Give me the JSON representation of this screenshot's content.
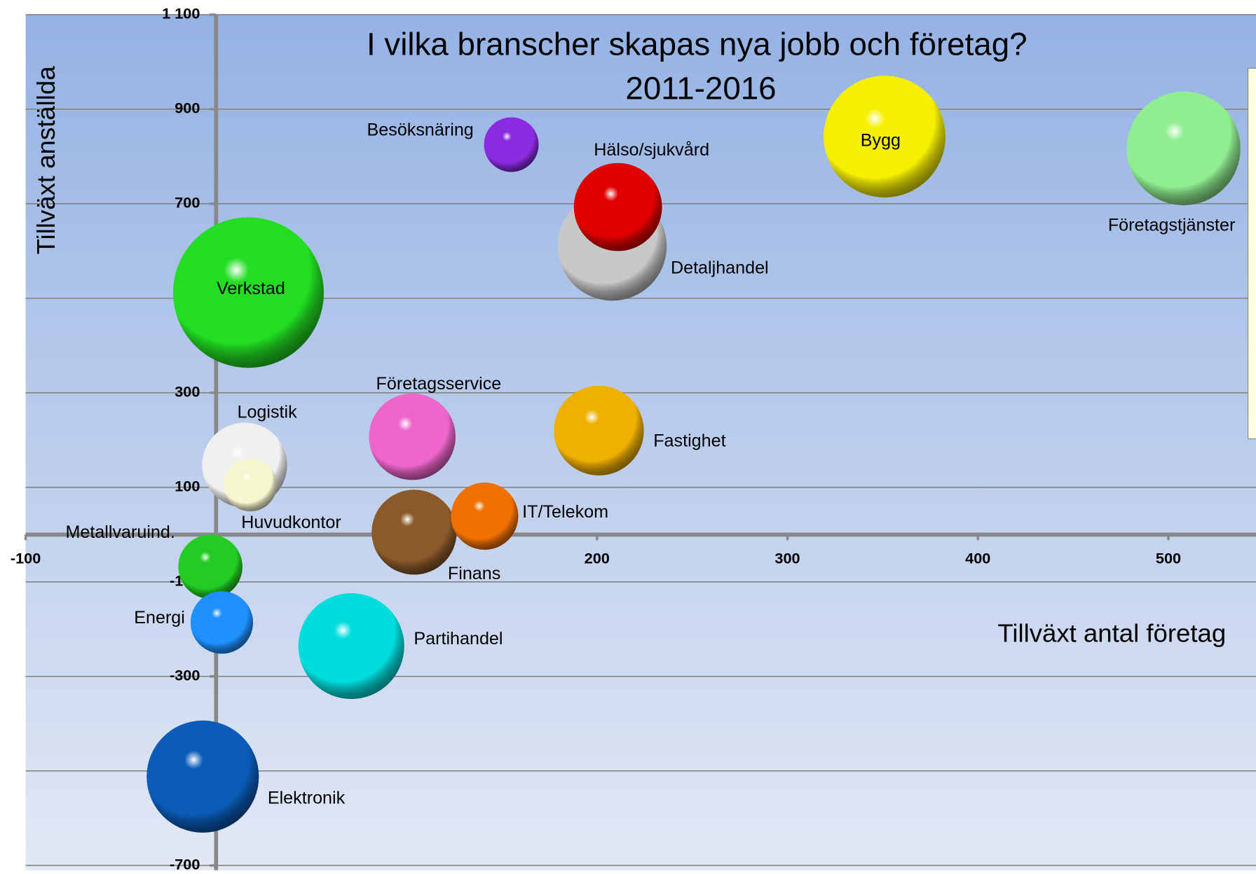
{
  "chart_data": {
    "type": "bubble",
    "title": "I vilka branscher skapas nya jobb och företag?",
    "subtitle": "2011-2016",
    "x_label": "Tillväxt antal företag",
    "y_label": "Tillväxt anställda",
    "xlim": [
      -100,
      546
    ],
    "ylim": [
      -700,
      1100
    ],
    "xticks": [
      -100,
      0,
      100,
      200,
      300,
      400,
      500
    ],
    "yticks": [
      -700,
      -500,
      -300,
      -100,
      100,
      300,
      500,
      700,
      900,
      {
        "value": 1100,
        "label": "1 100"
      }
    ],
    "grid": true,
    "points": [
      {
        "name": "Besöksnäring",
        "x": 155,
        "y": 825,
        "size": 116,
        "color": "#8a2be2"
      },
      {
        "name": "Detaljhandel",
        "x": 208,
        "y": 610,
        "size": 462,
        "color": "#c8c8c8"
      },
      {
        "name": "Hälso/sjukvård",
        "x": 211,
        "y": 693,
        "size": 302,
        "color": "#e00000"
      },
      {
        "name": "Bygg",
        "x": 351,
        "y": 842,
        "size": 578,
        "color": "#f5f000"
      },
      {
        "name": "Företagstjänster",
        "x": 508,
        "y": 817,
        "size": 504,
        "color": "#90ee90"
      },
      {
        "name": "Verkstad",
        "x": 17,
        "y": 512,
        "size": 884,
        "color": "#22dd22"
      },
      {
        "name": "Logistik",
        "x": 15,
        "y": 147,
        "size": 281,
        "color": "#f0f0f0"
      },
      {
        "name": "Huvudkontor",
        "x": 18,
        "y": 105,
        "size": 109,
        "color": "#f5f5d0"
      },
      {
        "name": "Företagsservice",
        "x": 103,
        "y": 207,
        "size": 292,
        "color": "#ee66cc"
      },
      {
        "name": "Fastighet",
        "x": 201,
        "y": 220,
        "size": 314,
        "color": "#f0b000"
      },
      {
        "name": "Finans",
        "x": 104,
        "y": 5,
        "size": 281,
        "color": "#8b5a2b"
      },
      {
        "name": "IT/Telekom",
        "x": 141,
        "y": 39,
        "size": 176,
        "color": "#f07000"
      },
      {
        "name": "Metallvaruind.",
        "x": -3,
        "y": -68,
        "size": 160,
        "color": "#22cc22"
      },
      {
        "name": "Energi",
        "x": 3,
        "y": -186,
        "size": 152,
        "color": "#1e90ff"
      },
      {
        "name": "Partihandel",
        "x": 71,
        "y": -236,
        "size": 436,
        "color": "#00dddd"
      },
      {
        "name": "Elektronik",
        "x": -7,
        "y": -512,
        "size": 490,
        "color": "#0a5cb8"
      }
    ]
  }
}
